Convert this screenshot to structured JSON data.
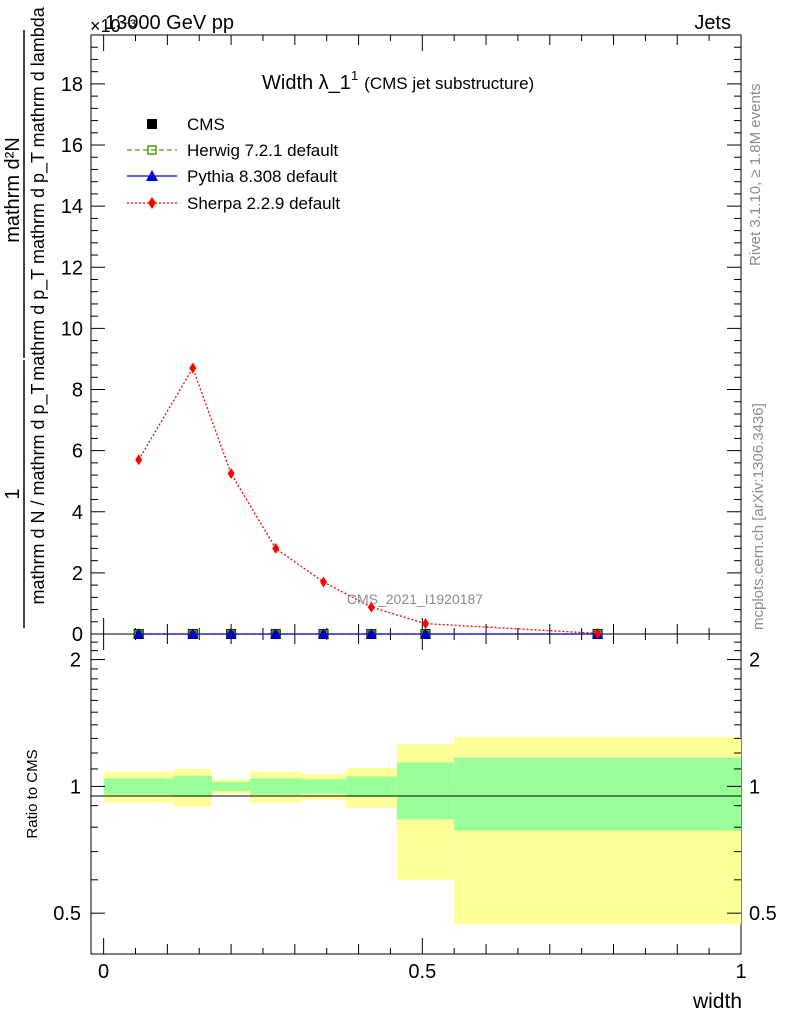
{
  "header": {
    "energy": "13000 GeV pp",
    "category": "Jets",
    "exponent": "×10",
    "exponent_power": "-3"
  },
  "side_labels": {
    "rivet": "Rivet 3.1.10, ≥ 1.8M events",
    "site": "mcplots.cern.ch [arXiv:1306.3436]"
  },
  "analysis_id": "CMS_2021_I1920187",
  "chart_data": {
    "type": "line",
    "title": "Width λ_1",
    "title_sup": "1",
    "title_suffix": "(CMS jet substructure)",
    "xlabel": "width",
    "ylabel_numerator": "mathrm d²N",
    "ylabel_denominator": "mathrm d p_T mathrm d p_T mathrm d lambda",
    "ylabel_prefix_num": "1",
    "ylabel_prefix_den": "mathrm d N / mathrm d p_T",
    "ratio_ylabel": "Ratio to CMS",
    "xlim": [
      -0.0198,
      1.0
    ],
    "ylim": [
      0,
      19.6
    ],
    "y_scale_label": "×10⁻³",
    "xticks": [
      0,
      0.5,
      1
    ],
    "xtick_labels": [
      "0",
      "0.5",
      "1"
    ],
    "yticks": [
      0,
      2,
      4,
      6,
      8,
      10,
      12,
      14,
      16,
      18
    ],
    "ytick_labels": [
      "0",
      "2",
      "4",
      "6",
      "8",
      "10",
      "12",
      "14",
      "16",
      "18"
    ],
    "ratio_ylim": [
      0.4,
      2.3
    ],
    "ratio_yticks": [
      0.5,
      1,
      2
    ],
    "ratio_ytick_labels": [
      "0.5",
      "1",
      "2"
    ],
    "bin_edges": [
      0,
      0.11,
      0.17,
      0.23,
      0.31,
      0.38,
      0.46,
      0.55,
      1.0
    ],
    "series": [
      {
        "name": "CMS",
        "marker": "square-filled",
        "color": "#000000",
        "x": [
          0.055,
          0.14,
          0.2,
          0.27,
          0.345,
          0.42,
          0.505,
          0.775
        ],
        "values": [
          0.0,
          0.0,
          0.0,
          0.0,
          0.0,
          0.0,
          0.0,
          0.0
        ]
      },
      {
        "name": "Herwig 7.2.1 default",
        "marker": "square-open",
        "color": "#4c9a19",
        "dash": "dashed",
        "x": [
          0.055,
          0.14,
          0.2,
          0.27,
          0.345,
          0.42,
          0.505,
          0.775
        ],
        "values": [
          0.0,
          0.0,
          0.0,
          0.0,
          0.0,
          0.0,
          0.0,
          0.0
        ]
      },
      {
        "name": "Pythia 8.308 default",
        "marker": "triangle-filled",
        "color": "#0000cc",
        "dash": "solid",
        "x": [
          0.055,
          0.14,
          0.2,
          0.27,
          0.345,
          0.42,
          0.505,
          0.775
        ],
        "values": [
          0.0,
          0.0,
          0.0,
          0.0,
          0.0,
          0.0,
          0.0,
          0.0
        ]
      },
      {
        "name": "Sherpa 2.2.9 default",
        "marker": "diamond-filled",
        "color": "#ff0000",
        "dash": "dotted",
        "x": [
          0.055,
          0.14,
          0.2,
          0.27,
          0.345,
          0.42,
          0.505,
          0.775
        ],
        "values": [
          5.7,
          8.7,
          5.25,
          2.8,
          1.7,
          0.88,
          0.34,
          0.02
        ]
      }
    ],
    "ratio_bands": {
      "inner_color": "#99ff99",
      "outer_color": "#ffff99",
      "inner_low": [
        0.955,
        0.945,
        0.975,
        0.955,
        0.96,
        0.945,
        0.835,
        0.785
      ],
      "inner_high": [
        1.045,
        1.06,
        1.025,
        1.045,
        1.04,
        1.055,
        1.14,
        1.17
      ],
      "outer_low": [
        0.915,
        0.895,
        0.96,
        0.915,
        0.93,
        0.89,
        0.6,
        0.47
      ],
      "outer_high": [
        1.085,
        1.1,
        1.04,
        1.085,
        1.07,
        1.105,
        1.26,
        1.31
      ]
    }
  }
}
